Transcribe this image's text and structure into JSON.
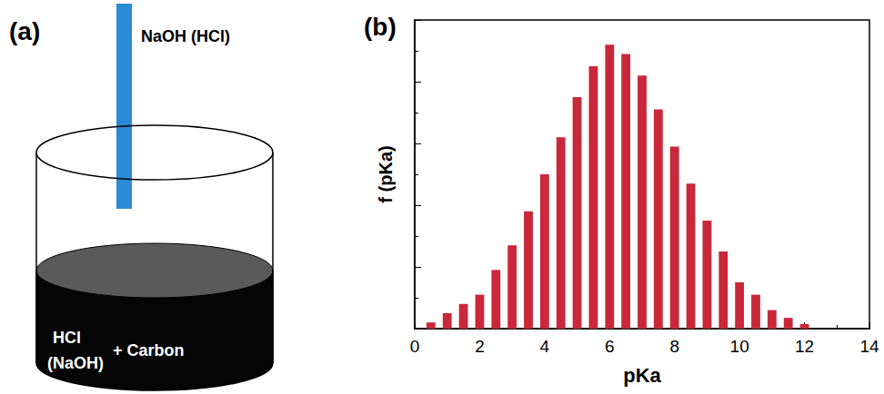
{
  "diagram": {
    "panel_label": "(a)",
    "rod_label": "NaOH (HCl)",
    "liquid_labels": [
      "HCl",
      "(NaOH)",
      "+ Carbon"
    ]
  },
  "chart_data": {
    "panel_label": "(b)",
    "type": "bar",
    "x": [
      0.5,
      1.0,
      1.5,
      2.0,
      2.5,
      3.0,
      3.5,
      4.0,
      4.5,
      5.0,
      5.5,
      6.0,
      6.5,
      7.0,
      7.5,
      8.0,
      8.5,
      9.0,
      9.5,
      10.0,
      10.5,
      11.0,
      11.5,
      12.0
    ],
    "values": [
      0.02,
      0.05,
      0.08,
      0.11,
      0.19,
      0.27,
      0.38,
      0.5,
      0.62,
      0.75,
      0.85,
      0.92,
      0.89,
      0.82,
      0.71,
      0.59,
      0.47,
      0.35,
      0.25,
      0.15,
      0.11,
      0.06,
      0.035,
      0.015
    ],
    "color": "#c8283a",
    "xlabel": "pKa",
    "ylabel": "f (pKa)",
    "xlim": [
      0,
      14
    ],
    "xticks": [
      0,
      2,
      4,
      6,
      8,
      10,
      12,
      14
    ],
    "ylim": [
      0,
      1
    ],
    "yticks": [
      0,
      0.2,
      0.4,
      0.6,
      0.8,
      1
    ],
    "tick_labels": "x",
    "grid": false
  }
}
